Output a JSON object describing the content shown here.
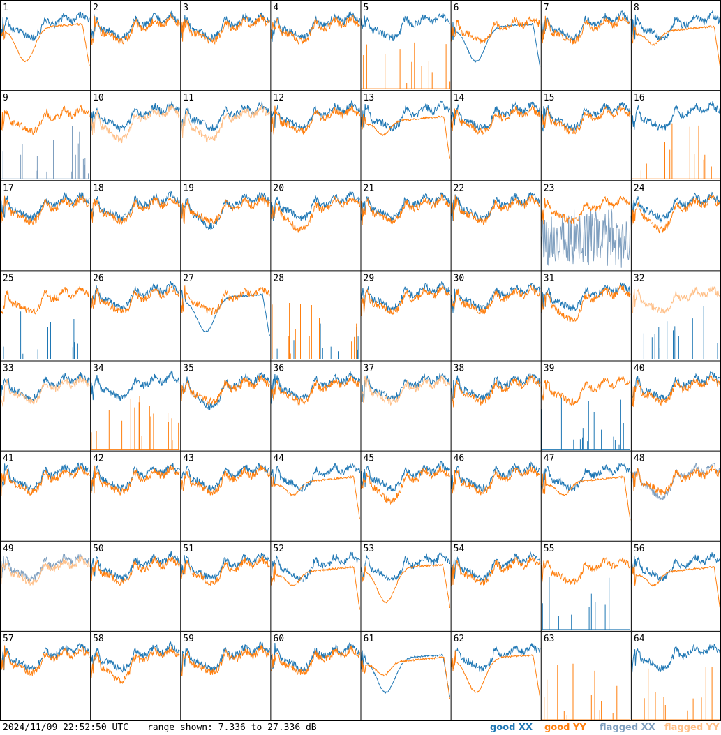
{
  "footer": {
    "timestamp": "2024/11/09 22:52:50 UTC",
    "range": "range shown: 7.336 to 27.336 dB"
  },
  "legend": {
    "good_xx": "good XX",
    "good_yy": "good YY",
    "flagged_xx": "flagged XX",
    "flagged_yy": "flagged YY"
  },
  "colors": {
    "good_xx": "#1f77b4",
    "good_yy": "#ff7f0e",
    "flagged_xx": "#7f9fbf",
    "flagged_yy": "#ffbf87",
    "grid_line": "#000000"
  },
  "chart_data": {
    "type": "line",
    "layout": "8x8 small multiples",
    "y_range_db": [
      7.336,
      27.336
    ],
    "x_label": "",
    "y_label": "",
    "panels": [
      {
        "id": "1",
        "xx": "good",
        "yy": "good",
        "xx_shape": "normal",
        "yy_shape": "sag"
      },
      {
        "id": "2",
        "xx": "good",
        "yy": "good",
        "xx_shape": "normal",
        "yy_shape": "normal"
      },
      {
        "id": "3",
        "xx": "good",
        "yy": "good",
        "xx_shape": "normal",
        "yy_shape": "normal"
      },
      {
        "id": "4",
        "xx": "good",
        "yy": "good",
        "xx_shape": "normal",
        "yy_shape": "normal"
      },
      {
        "id": "5",
        "xx": "good",
        "yy": "good",
        "xx_shape": "normal",
        "yy_shape": "spikes"
      },
      {
        "id": "6",
        "xx": "good",
        "yy": "good",
        "xx_shape": "sag",
        "yy_shape": "normal"
      },
      {
        "id": "7",
        "xx": "good",
        "yy": "good",
        "xx_shape": "normal",
        "yy_shape": "normal"
      },
      {
        "id": "8",
        "xx": "good",
        "yy": "good",
        "xx_shape": "normal",
        "yy_shape": "plateau"
      },
      {
        "id": "9",
        "xx": "flagged",
        "yy": "good",
        "xx_shape": "spikes",
        "yy_shape": "normal"
      },
      {
        "id": "10",
        "xx": "good",
        "yy": "flagged",
        "xx_shape": "normal",
        "yy_shape": "deep"
      },
      {
        "id": "11",
        "xx": "good",
        "yy": "flagged",
        "xx_shape": "normal",
        "yy_shape": "deep"
      },
      {
        "id": "12",
        "xx": "good",
        "yy": "good",
        "xx_shape": "normal",
        "yy_shape": "normal"
      },
      {
        "id": "13",
        "xx": "good",
        "yy": "good",
        "xx_shape": "normal",
        "yy_shape": "plateau"
      },
      {
        "id": "14",
        "xx": "good",
        "yy": "good",
        "xx_shape": "normal",
        "yy_shape": "normal"
      },
      {
        "id": "15",
        "xx": "good",
        "yy": "good",
        "xx_shape": "normal",
        "yy_shape": "normal"
      },
      {
        "id": "16",
        "xx": "good",
        "yy": "good",
        "xx_shape": "normal",
        "yy_shape": "spikes"
      },
      {
        "id": "17",
        "xx": "good",
        "yy": "good",
        "xx_shape": "normal",
        "yy_shape": "normal"
      },
      {
        "id": "18",
        "xx": "good",
        "yy": "good",
        "xx_shape": "normal",
        "yy_shape": "normal"
      },
      {
        "id": "19",
        "xx": "good",
        "yy": "good",
        "xx_shape": "deep",
        "yy_shape": "normal"
      },
      {
        "id": "20",
        "xx": "good",
        "yy": "good",
        "xx_shape": "normal",
        "yy_shape": "deep"
      },
      {
        "id": "21",
        "xx": "good",
        "yy": "good",
        "xx_shape": "normal",
        "yy_shape": "normal"
      },
      {
        "id": "22",
        "xx": "good",
        "yy": "good",
        "xx_shape": "normal",
        "yy_shape": "normal"
      },
      {
        "id": "23",
        "xx": "flagged",
        "yy": "good",
        "xx_shape": "noisy",
        "yy_shape": "normal"
      },
      {
        "id": "24",
        "xx": "good",
        "yy": "good",
        "xx_shape": "normal",
        "yy_shape": "deep"
      },
      {
        "id": "25",
        "xx": "good",
        "yy": "good",
        "xx_shape": "spikes",
        "yy_shape": "normal"
      },
      {
        "id": "26",
        "xx": "good",
        "yy": "good",
        "xx_shape": "normal",
        "yy_shape": "normal"
      },
      {
        "id": "27",
        "xx": "good",
        "yy": "good",
        "xx_shape": "sag",
        "yy_shape": "normal"
      },
      {
        "id": "28",
        "xx": "good",
        "yy": "good",
        "xx_shape": "spikes",
        "yy_shape": "spikes"
      },
      {
        "id": "29",
        "xx": "good",
        "yy": "good",
        "xx_shape": "normal",
        "yy_shape": "normal"
      },
      {
        "id": "30",
        "xx": "good",
        "yy": "good",
        "xx_shape": "normal",
        "yy_shape": "normal"
      },
      {
        "id": "31",
        "xx": "good",
        "yy": "good",
        "xx_shape": "normal",
        "yy_shape": "deep"
      },
      {
        "id": "32",
        "xx": "good",
        "yy": "flagged",
        "xx_shape": "spikes",
        "yy_shape": "normal"
      },
      {
        "id": "33",
        "xx": "good",
        "yy": "flagged",
        "xx_shape": "normal",
        "yy_shape": "normal"
      },
      {
        "id": "34",
        "xx": "good",
        "yy": "good",
        "xx_shape": "normal",
        "yy_shape": "spikes"
      },
      {
        "id": "35",
        "xx": "good",
        "yy": "good",
        "xx_shape": "deep",
        "yy_shape": "normal"
      },
      {
        "id": "36",
        "xx": "good",
        "yy": "good",
        "xx_shape": "normal",
        "yy_shape": "normal"
      },
      {
        "id": "37",
        "xx": "good",
        "yy": "flagged",
        "xx_shape": "normal",
        "yy_shape": "normal"
      },
      {
        "id": "38",
        "xx": "good",
        "yy": "good",
        "xx_shape": "normal",
        "yy_shape": "normal"
      },
      {
        "id": "39",
        "xx": "good",
        "yy": "good",
        "xx_shape": "spikes",
        "yy_shape": "normal"
      },
      {
        "id": "40",
        "xx": "good",
        "yy": "good",
        "xx_shape": "normal",
        "yy_shape": "normal"
      },
      {
        "id": "41",
        "xx": "good",
        "yy": "good",
        "xx_shape": "normal",
        "yy_shape": "normal"
      },
      {
        "id": "42",
        "xx": "good",
        "yy": "good",
        "xx_shape": "normal",
        "yy_shape": "normal"
      },
      {
        "id": "43",
        "xx": "good",
        "yy": "good",
        "xx_shape": "normal",
        "yy_shape": "normal"
      },
      {
        "id": "44",
        "xx": "good",
        "yy": "good",
        "xx_shape": "normal",
        "yy_shape": "plateau"
      },
      {
        "id": "45",
        "xx": "good",
        "yy": "good",
        "xx_shape": "normal",
        "yy_shape": "deep"
      },
      {
        "id": "46",
        "xx": "good",
        "yy": "good",
        "xx_shape": "normal",
        "yy_shape": "normal"
      },
      {
        "id": "47",
        "xx": "good",
        "yy": "good",
        "xx_shape": "normal",
        "yy_shape": "plateau"
      },
      {
        "id": "48",
        "xx": "flagged",
        "yy": "good",
        "xx_shape": "deep",
        "yy_shape": "normal"
      },
      {
        "id": "49",
        "xx": "flagged",
        "yy": "flagged",
        "xx_shape": "normal",
        "yy_shape": "normal"
      },
      {
        "id": "50",
        "xx": "good",
        "yy": "good",
        "xx_shape": "normal",
        "yy_shape": "normal"
      },
      {
        "id": "51",
        "xx": "good",
        "yy": "good",
        "xx_shape": "normal",
        "yy_shape": "normal"
      },
      {
        "id": "52",
        "xx": "good",
        "yy": "good",
        "xx_shape": "normal",
        "yy_shape": "plateau"
      },
      {
        "id": "53",
        "xx": "good",
        "yy": "good",
        "xx_shape": "normal",
        "yy_shape": "sag"
      },
      {
        "id": "54",
        "xx": "good",
        "yy": "good",
        "xx_shape": "normal",
        "yy_shape": "normal"
      },
      {
        "id": "55",
        "xx": "good",
        "yy": "good",
        "xx_shape": "spikes",
        "yy_shape": "normal"
      },
      {
        "id": "56",
        "xx": "good",
        "yy": "good",
        "xx_shape": "normal",
        "yy_shape": "plateau"
      },
      {
        "id": "57",
        "xx": "good",
        "yy": "good",
        "xx_shape": "normal",
        "yy_shape": "normal"
      },
      {
        "id": "58",
        "xx": "good",
        "yy": "good",
        "xx_shape": "normal",
        "yy_shape": "deep"
      },
      {
        "id": "59",
        "xx": "good",
        "yy": "good",
        "xx_shape": "normal",
        "yy_shape": "normal"
      },
      {
        "id": "60",
        "xx": "good",
        "yy": "good",
        "xx_shape": "normal",
        "yy_shape": "normal"
      },
      {
        "id": "61",
        "xx": "good",
        "yy": "good",
        "xx_shape": "sag",
        "yy_shape": "plateau"
      },
      {
        "id": "62",
        "xx": "good",
        "yy": "good",
        "xx_shape": "normal",
        "yy_shape": "sag"
      },
      {
        "id": "63",
        "xx": "good",
        "yy": "good",
        "xx_shape": "none",
        "yy_shape": "spikes"
      },
      {
        "id": "64",
        "xx": "good",
        "yy": "good",
        "xx_shape": "normal",
        "yy_shape": "spikes"
      }
    ]
  }
}
